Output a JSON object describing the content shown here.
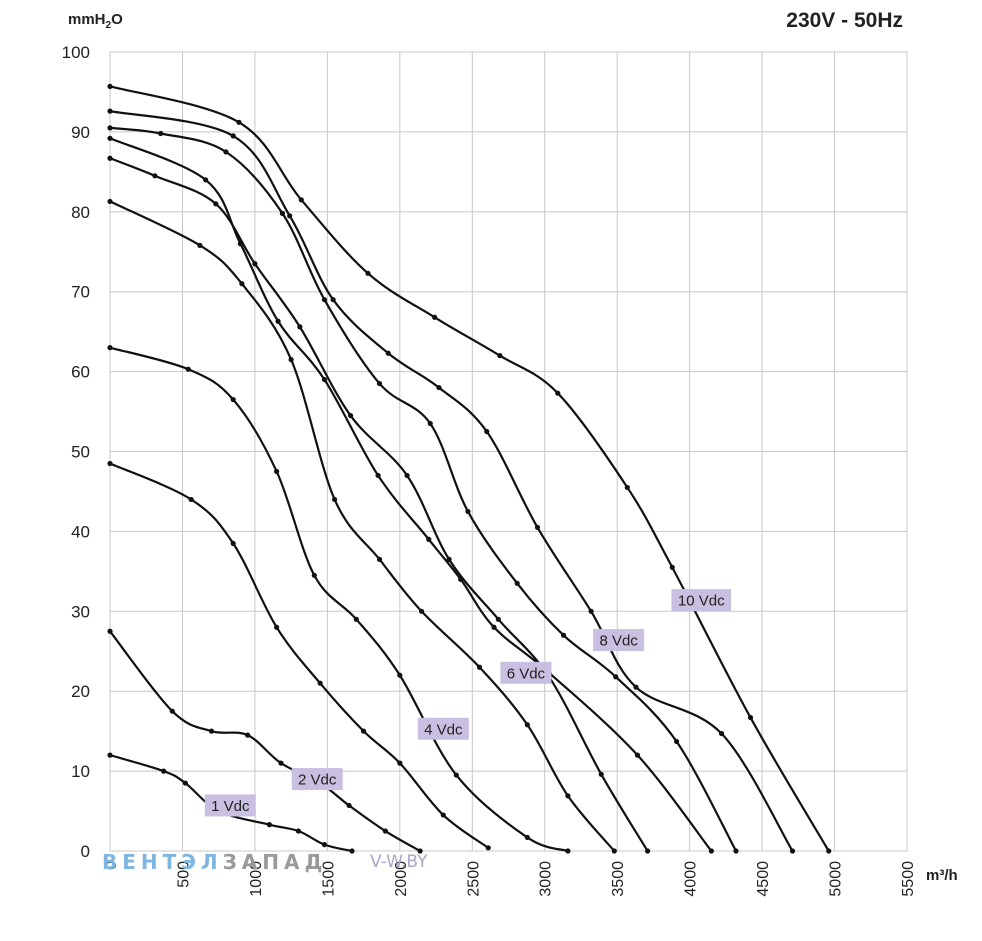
{
  "chart_data": {
    "type": "line",
    "title": "230V - 50Hz",
    "ylabel_main": "mmH",
    "ylabel_sub": "2",
    "ylabel_tail": "O",
    "xlabel": "m³/h",
    "xlim": [
      0,
      5500
    ],
    "ylim": [
      0,
      100
    ],
    "xticks": [
      "0",
      "500",
      "1000",
      "1500",
      "2000",
      "2500",
      "3000",
      "3500",
      "4000",
      "4500",
      "5000",
      "5500"
    ],
    "yticks": [
      "0",
      "10",
      "20",
      "30",
      "40",
      "50",
      "60",
      "70",
      "80",
      "90",
      "100"
    ],
    "grid": true,
    "series": [
      {
        "label": "1 Vdc",
        "label_at": [
          830,
          5.7
        ],
        "points": [
          [
            0,
            12
          ],
          [
            370,
            10
          ],
          [
            520,
            8.5
          ],
          [
            750,
            5
          ],
          [
            1100,
            3.3
          ],
          [
            1300,
            2.5
          ],
          [
            1480,
            0.8
          ],
          [
            1670,
            0
          ]
        ]
      },
      {
        "label": "2 Vdc",
        "label_at": [
          1430,
          9
        ],
        "points": [
          [
            0,
            27.5
          ],
          [
            430,
            17.5
          ],
          [
            700,
            15
          ],
          [
            950,
            14.5
          ],
          [
            1180,
            11
          ],
          [
            1450,
            8.5
          ],
          [
            1650,
            5.7
          ],
          [
            1900,
            2.5
          ],
          [
            2140,
            0
          ]
        ]
      },
      {
        "label": "",
        "points": [
          [
            0,
            48.5
          ],
          [
            560,
            44
          ],
          [
            850,
            38.5
          ],
          [
            1150,
            28
          ],
          [
            1450,
            21
          ],
          [
            1750,
            15
          ],
          [
            2000,
            11
          ],
          [
            2300,
            4.5
          ],
          [
            2610,
            0.4
          ]
        ]
      },
      {
        "label": "4 Vdc",
        "label_at": [
          2300,
          15.3
        ],
        "points": [
          [
            0,
            63
          ],
          [
            540,
            60.3
          ],
          [
            850,
            56.5
          ],
          [
            1150,
            47.5
          ],
          [
            1410,
            34.5
          ],
          [
            1700,
            29
          ],
          [
            2000,
            22
          ],
          [
            2390,
            9.5
          ],
          [
            2880,
            1.7
          ],
          [
            3160,
            0
          ]
        ]
      },
      {
        "label": "",
        "points": [
          [
            0,
            81.3
          ],
          [
            620,
            75.8
          ],
          [
            910,
            71
          ],
          [
            1250,
            61.5
          ],
          [
            1550,
            44
          ],
          [
            1860,
            36.5
          ],
          [
            2150,
            30
          ],
          [
            2550,
            23
          ],
          [
            2880,
            15.8
          ],
          [
            3160,
            6.9
          ],
          [
            3480,
            0
          ]
        ]
      },
      {
        "label": "6 Vdc",
        "label_at": [
          2870,
          22.3
        ],
        "points": [
          [
            0,
            86.7
          ],
          [
            310,
            84.5
          ],
          [
            730,
            81
          ],
          [
            1000,
            73.5
          ],
          [
            1310,
            65.6
          ],
          [
            1660,
            54.5
          ],
          [
            2050,
            47
          ],
          [
            2340,
            36.5
          ],
          [
            2680,
            29
          ],
          [
            3030,
            21.8
          ],
          [
            3390,
            9.6
          ],
          [
            3710,
            0
          ]
        ]
      },
      {
        "label": "",
        "points": [
          [
            0,
            89.2
          ],
          [
            660,
            84
          ],
          [
            900,
            76
          ],
          [
            1160,
            66.3
          ],
          [
            1480,
            59
          ],
          [
            1850,
            47
          ],
          [
            2200,
            39
          ],
          [
            2420,
            34
          ],
          [
            2650,
            28
          ],
          [
            3030,
            22.3
          ],
          [
            3640,
            12
          ],
          [
            4150,
            0
          ]
        ]
      },
      {
        "label": "8 Vdc",
        "label_at": [
          3510,
          26.4
        ],
        "points": [
          [
            0,
            90.5
          ],
          [
            350,
            89.8
          ],
          [
            800,
            87.5
          ],
          [
            1190,
            79.8
          ],
          [
            1480,
            69
          ],
          [
            1860,
            58.5
          ],
          [
            2210,
            53.5
          ],
          [
            2470,
            42.5
          ],
          [
            2810,
            33.5
          ],
          [
            3130,
            27
          ],
          [
            3490,
            21.8
          ],
          [
            3910,
            13.7
          ],
          [
            4320,
            0
          ]
        ]
      },
      {
        "label": "",
        "points": [
          [
            0,
            92.6
          ],
          [
            850,
            89.5
          ],
          [
            1240,
            79.5
          ],
          [
            1540,
            69
          ],
          [
            1920,
            62.3
          ],
          [
            2270,
            58
          ],
          [
            2600,
            52.5
          ],
          [
            2950,
            40.5
          ],
          [
            3320,
            30
          ],
          [
            3630,
            20.5
          ],
          [
            4220,
            14.7
          ],
          [
            4710,
            0
          ]
        ]
      },
      {
        "label": "10 Vdc",
        "label_at": [
          4080,
          31.4
        ],
        "points": [
          [
            0,
            95.7
          ],
          [
            890,
            91.2
          ],
          [
            1320,
            81.5
          ],
          [
            1780,
            72.3
          ],
          [
            2240,
            66.8
          ],
          [
            2690,
            62
          ],
          [
            3090,
            57.3
          ],
          [
            3570,
            45.5
          ],
          [
            3880,
            35.5
          ],
          [
            4420,
            16.7
          ],
          [
            4960,
            0
          ]
        ]
      }
    ]
  },
  "watermark": {
    "part_a": "ВЕНТЭЛ",
    "part_b": "ЗАПАД",
    "site": "V-W.BY"
  }
}
